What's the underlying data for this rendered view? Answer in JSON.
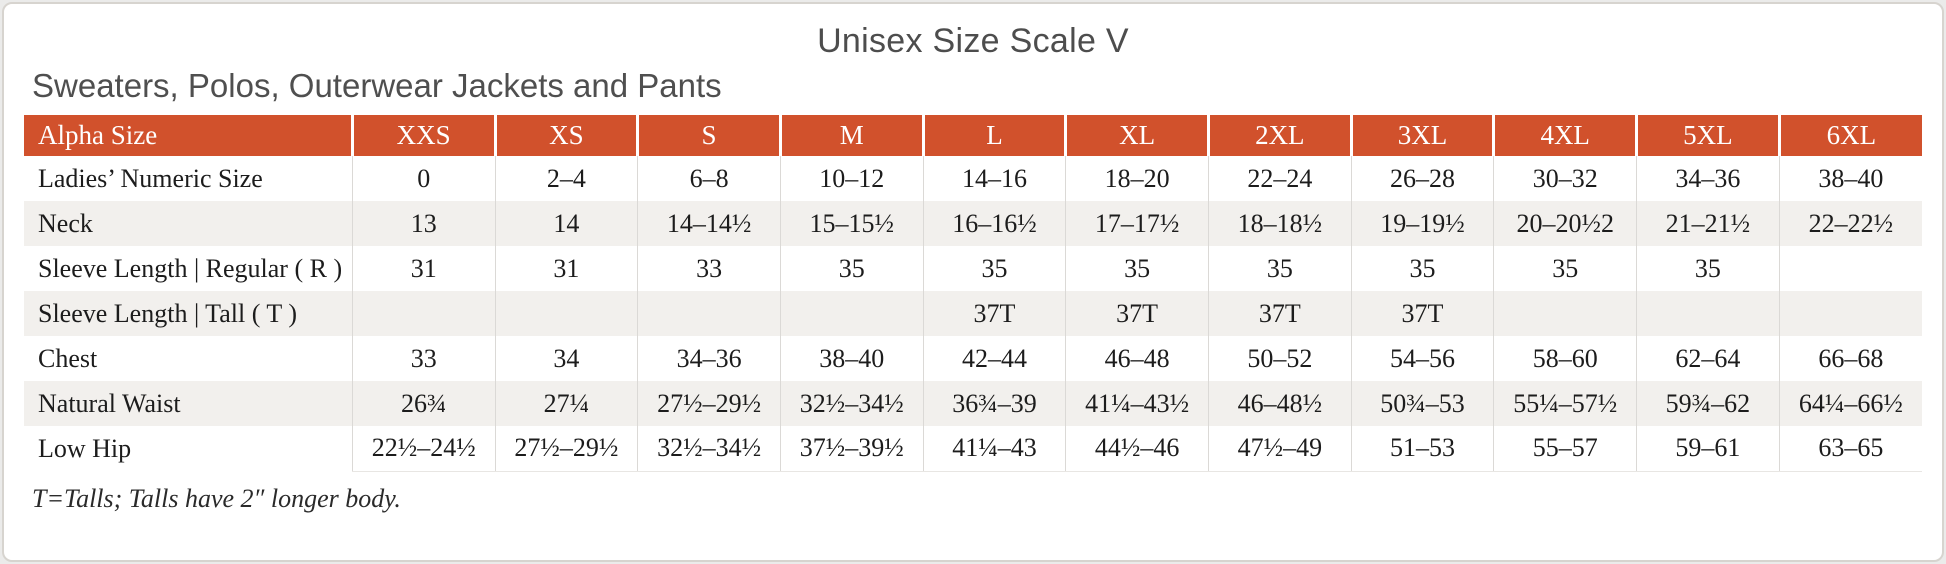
{
  "page": {
    "title": "Unisex Size Scale V",
    "subtitle": "Sweaters, Polos, Outerwear Jackets and Pants",
    "footnote": "T=Talls; Talls have 2″ longer body."
  },
  "colors": {
    "header_bg": "#d1512c",
    "header_text": "#ffffff",
    "alt_row_bg": "#f2f0ed",
    "body_text": "#1c1c1c",
    "heading_text": "#4f4f4f",
    "card_border": "#d7d4cf",
    "cell_border": "#dbd9d6"
  },
  "chart_data": {
    "type": "table",
    "title": "Unisex Size Scale V",
    "subtitle": "Sweaters, Polos, Outerwear Jackets and Pants",
    "footnote": "T=Talls; Talls have 2″ longer body.",
    "columns": [
      "Alpha Size",
      "XXS",
      "XS",
      "S",
      "M",
      "L",
      "XL",
      "2XL",
      "3XL",
      "4XL",
      "5XL",
      "6XL"
    ],
    "rows": [
      {
        "label": "Ladies’ Numeric Size",
        "values": [
          "0",
          "2–4",
          "6–8",
          "10–12",
          "14–16",
          "18–20",
          "22–24",
          "26–28",
          "30–32",
          "34–36",
          "38–40"
        ]
      },
      {
        "label": "Neck",
        "values": [
          "13",
          "14",
          "14–14½",
          "15–15½",
          "16–16½",
          "17–17½",
          "18–18½",
          "19–19½",
          "20–20½2",
          "21–21½",
          "22–22½"
        ]
      },
      {
        "label": "Sleeve Length | Regular ( R )",
        "values": [
          "31",
          "31",
          "33",
          "35",
          "35",
          "35",
          "35",
          "35",
          "35",
          "35",
          ""
        ]
      },
      {
        "label": "Sleeve Length | Tall ( T )",
        "values": [
          "",
          "",
          "",
          "",
          "37T",
          "37T",
          "37T",
          "37T",
          "",
          "",
          ""
        ]
      },
      {
        "label": "Chest",
        "values": [
          "33",
          "34",
          "34–36",
          "38–40",
          "42–44",
          "46–48",
          "50–52",
          "54–56",
          "58–60",
          "62–64",
          "66–68"
        ]
      },
      {
        "label": "Natural Waist",
        "values": [
          "26¾",
          "27¼",
          "27½–29½",
          "32½–34½",
          "36¾–39",
          "41¼–43½",
          "46–48½",
          "50¾–53",
          "55¼–57½",
          "59¾–62",
          "64¼–66½"
        ]
      },
      {
        "label": "Low Hip",
        "values": [
          "22½–24½",
          "27½–29½",
          "32½–34½",
          "37½–39½",
          "41¼–43",
          "44½–46",
          "47½–49",
          "51–53",
          "55–57",
          "59–61",
          "63–65"
        ]
      }
    ]
  }
}
